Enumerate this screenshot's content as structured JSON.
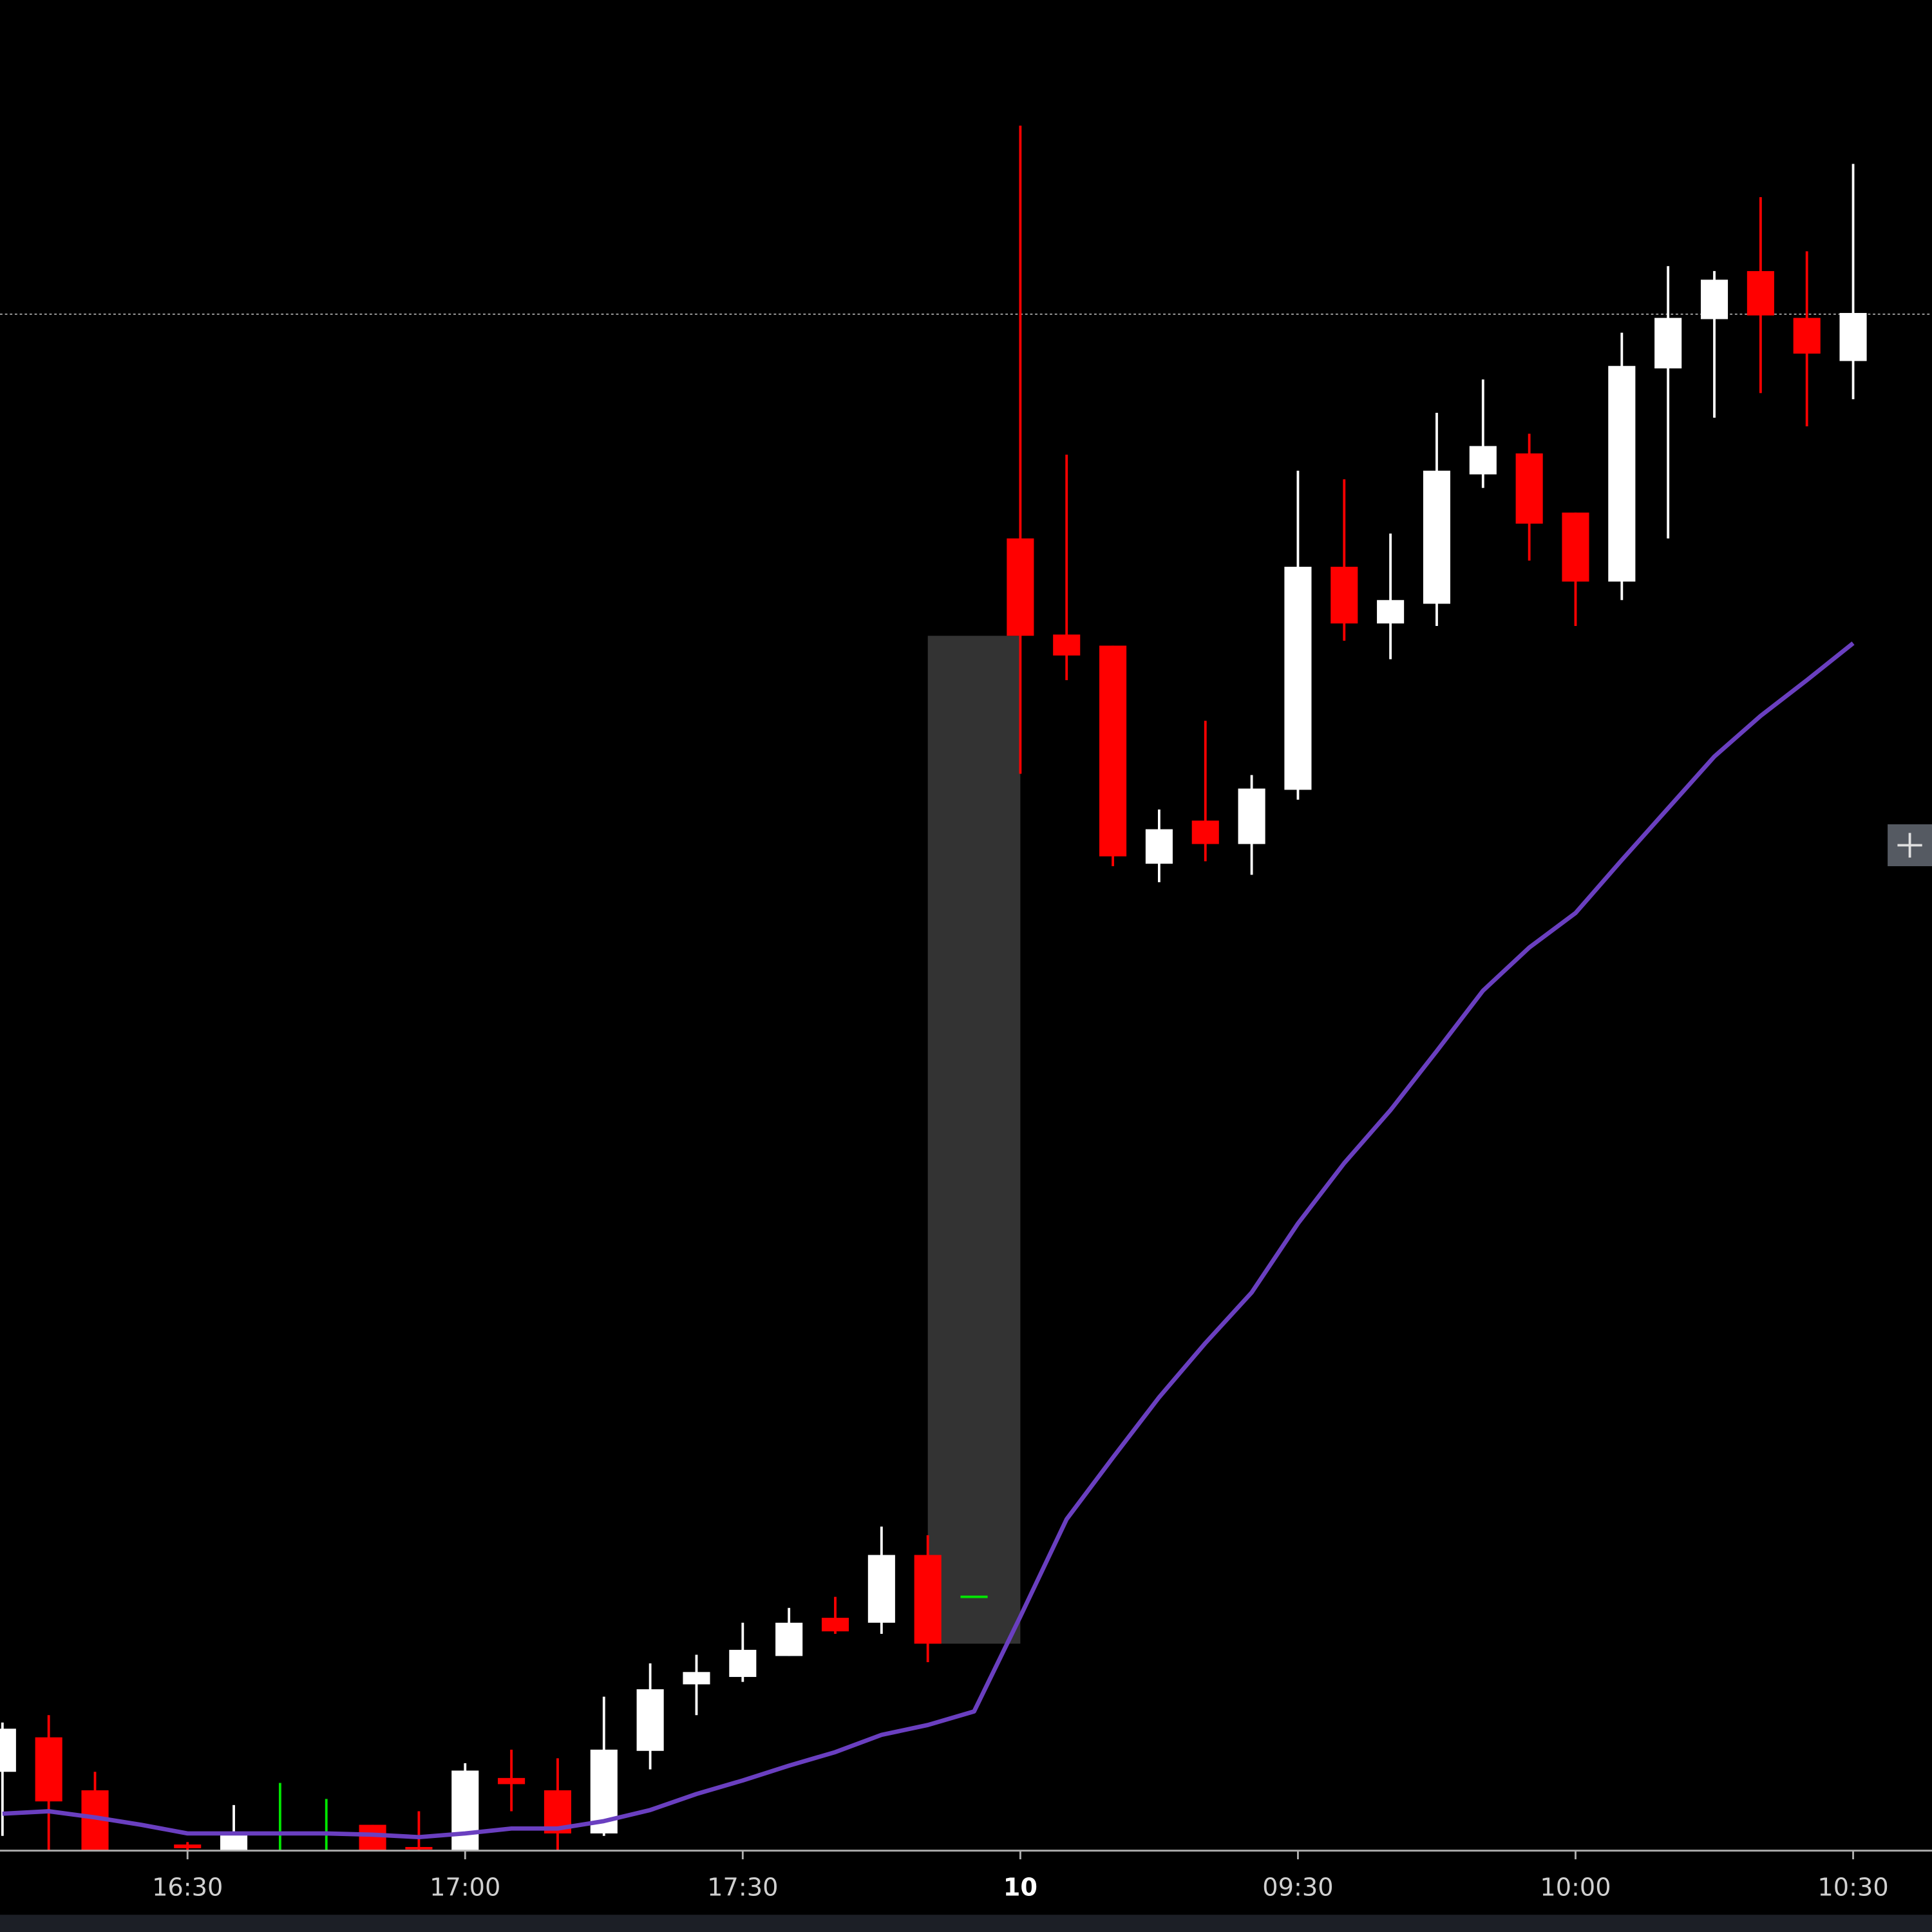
{
  "chart_data": {
    "type": "candlestick",
    "categories": [
      null,
      null,
      null,
      null,
      "16:30",
      null,
      null,
      null,
      null,
      null,
      "17:00",
      null,
      null,
      null,
      null,
      null,
      "17:30",
      null,
      null,
      null,
      null,
      null,
      "10",
      null,
      null,
      null,
      null,
      null,
      "09:30",
      null,
      null,
      null,
      null,
      null,
      "10:00",
      null,
      null,
      null,
      null,
      null,
      "10:30"
    ],
    "open": [
      64,
      92,
      49,
      null,
      5,
      0,
      14,
      14,
      21,
      3,
      0,
      59,
      49,
      14,
      81,
      135,
      141,
      158,
      189,
      185,
      240,
      206,
      1065,
      987,
      978,
      801,
      836,
      817,
      861,
      1042,
      996,
      1012,
      1117,
      1134,
      1086,
      1030,
      1203,
      1243,
      1282,
      1244,
      1209
    ],
    "high": [
      104,
      110,
      64,
      null,
      7,
      37,
      55,
      42,
      21,
      32,
      71,
      82,
      75,
      125,
      152,
      159,
      185,
      197,
      206,
      263,
      256,
      206,
      1400,
      1133,
      978,
      845,
      917,
      873,
      1120,
      1113,
      1069,
      1167,
      1194,
      1150,
      1086,
      1232,
      1286,
      1282,
      1342,
      1298,
      1369
    ],
    "low": [
      12,
      0,
      0,
      null,
      0,
      0,
      0,
      0,
      0,
      0,
      0,
      32,
      0,
      12,
      66,
      110,
      137,
      158,
      176,
      176,
      153,
      206,
      874,
      950,
      799,
      786,
      803,
      792,
      853,
      982,
      967,
      994,
      1106,
      1047,
      994,
      1015,
      1065,
      1163,
      1183,
      1156,
      1178
    ],
    "close": [
      99,
      40,
      0,
      null,
      2,
      15,
      14,
      14,
      0,
      1,
      65,
      54,
      14,
      82,
      131,
      145,
      163,
      185,
      178,
      240,
      168,
      206,
      986,
      970,
      807,
      829,
      817,
      862,
      1042,
      996,
      1015,
      1120,
      1140,
      1077,
      1030,
      1205,
      1244,
      1275,
      1246,
      1215,
      1248
    ],
    "up_color": "#ffffff",
    "down_color": "#ff0000",
    "doji_color": "#00e600",
    "series": [
      {
        "color": "#6a3fc0",
        "values": [
          30,
          32,
          27,
          21,
          14,
          14,
          14,
          14,
          13,
          11,
          14,
          18,
          18,
          24,
          33,
          46,
          57,
          69,
          80,
          94,
          102,
          113,
          190,
          269,
          319,
          368,
          412,
          453,
          509,
          558,
          601,
          649,
          698,
          733,
          761,
          804,
          846,
          888,
          921,
          950,
          980
        ]
      }
    ],
    "ylim": [
      0,
      1502
    ],
    "price_line": {
      "value": 1247,
      "color": "#9a9a9a"
    },
    "gap_zone": {
      "from": 20,
      "to": 22,
      "bottom": 168,
      "top": 986,
      "color": "#333333"
    },
    "session_break": 22
  }
}
